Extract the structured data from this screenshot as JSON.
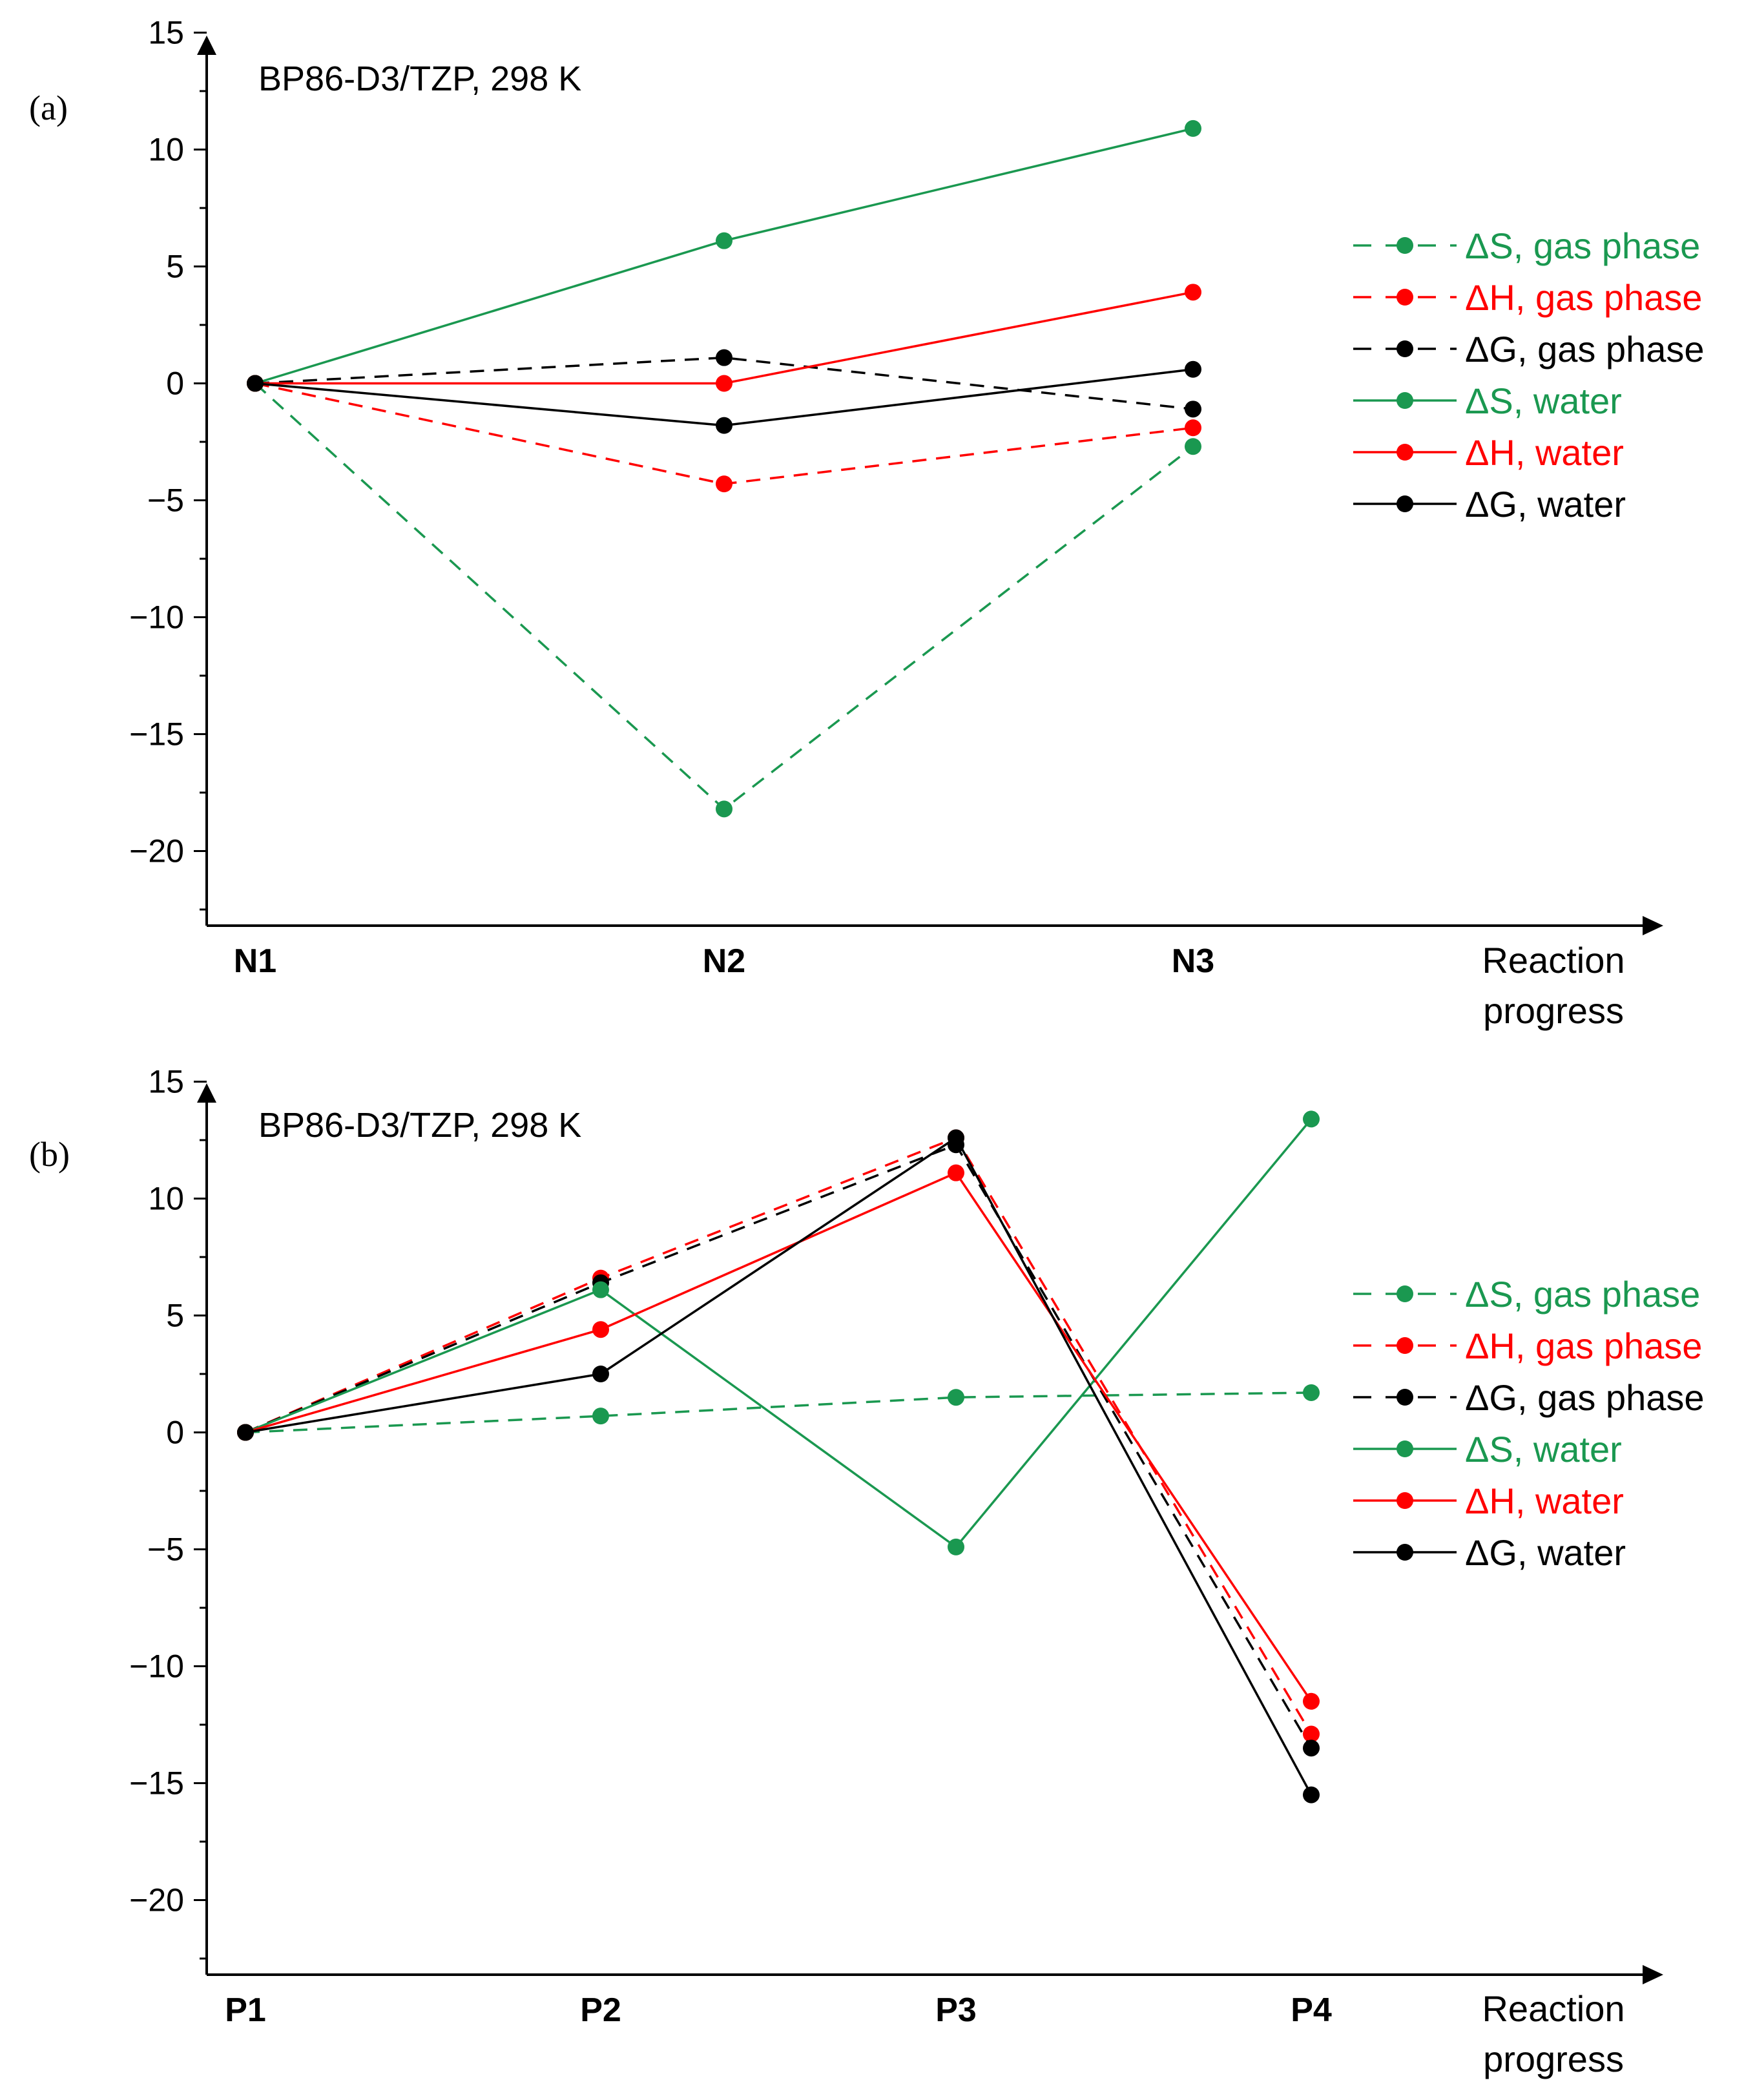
{
  "chart_data": [
    {
      "type": "line",
      "panel_label": "(a)",
      "title": "BP86-D3/TZP, 298 K",
      "xlabel": [
        "Reaction",
        "progress"
      ],
      "ylabel": "",
      "categories": [
        "N1",
        "N2",
        "N3"
      ],
      "ylim": [
        -22.5,
        15
      ],
      "yticks": [
        -20,
        -15,
        -10,
        -5,
        0,
        5,
        10,
        15
      ],
      "yticks_text": [
        "−20",
        "−15",
        "−10",
        "−5",
        "0",
        "5",
        "10",
        "15"
      ],
      "legend_position": "right",
      "series": [
        {
          "name": "ΔS, gas phase",
          "color": "#1a9850",
          "dashed": true,
          "values": [
            0,
            -18.2,
            -2.7
          ]
        },
        {
          "name": "ΔH, gas phase",
          "color": "#ff0000",
          "dashed": true,
          "values": [
            0,
            -4.3,
            -1.9
          ]
        },
        {
          "name": "ΔG, gas phase",
          "color": "#000000",
          "dashed": true,
          "values": [
            0,
            1.1,
            -1.1
          ]
        },
        {
          "name": "ΔS, water",
          "color": "#1a9850",
          "dashed": false,
          "values": [
            0,
            6.1,
            10.9
          ]
        },
        {
          "name": "ΔH, water",
          "color": "#ff0000",
          "dashed": false,
          "values": [
            0,
            0.0,
            3.9
          ]
        },
        {
          "name": "ΔG, water",
          "color": "#000000",
          "dashed": false,
          "values": [
            0,
            -1.8,
            0.6
          ]
        }
      ]
    },
    {
      "type": "line",
      "panel_label": "(b)",
      "title": "BP86-D3/TZP, 298 K",
      "xlabel": [
        "Reaction",
        "progress"
      ],
      "ylabel": "",
      "categories": [
        "P1",
        "P2",
        "P3",
        "P4"
      ],
      "ylim": [
        -22.5,
        15
      ],
      "yticks": [
        -20,
        -15,
        -10,
        -5,
        0,
        5,
        10,
        15
      ],
      "yticks_text": [
        "−20",
        "−15",
        "−10",
        "−5",
        "0",
        "5",
        "10",
        "15"
      ],
      "legend_position": "right",
      "series": [
        {
          "name": "ΔS, gas phase",
          "color": "#1a9850",
          "dashed": true,
          "values": [
            0,
            0.7,
            1.5,
            1.7
          ]
        },
        {
          "name": "ΔH, gas phase",
          "color": "#ff0000",
          "dashed": true,
          "values": [
            0,
            6.6,
            12.6,
            -12.9
          ]
        },
        {
          "name": "ΔG, gas phase",
          "color": "#000000",
          "dashed": true,
          "values": [
            0,
            6.4,
            12.3,
            -13.5
          ]
        },
        {
          "name": "ΔS, water",
          "color": "#1a9850",
          "dashed": false,
          "values": [
            0,
            6.1,
            -4.9,
            13.4
          ]
        },
        {
          "name": "ΔH, water",
          "color": "#ff0000",
          "dashed": false,
          "values": [
            0,
            4.4,
            11.1,
            -11.5
          ]
        },
        {
          "name": "ΔG, water",
          "color": "#000000",
          "dashed": false,
          "values": [
            0,
            2.5,
            12.6,
            -15.5
          ]
        }
      ]
    }
  ]
}
